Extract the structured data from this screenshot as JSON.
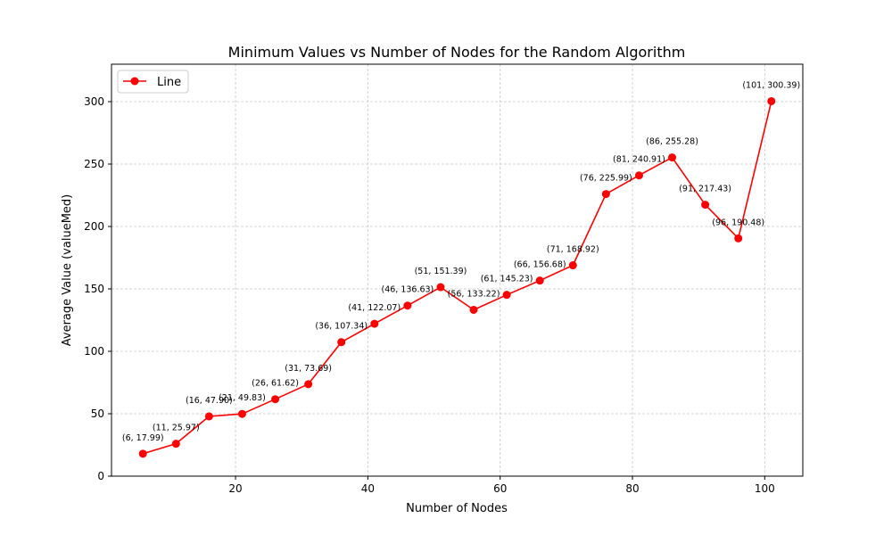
{
  "chart_data": {
    "type": "line",
    "title": "Minimum Values vs Number of Nodes for the Random Algorithm",
    "xlabel": "Number of Nodes",
    "ylabel": "Average Value (valueMed)",
    "xlim": [
      1.25,
      105.75
    ],
    "ylim": [
      0,
      330
    ],
    "xticks": [
      20,
      40,
      60,
      80,
      100
    ],
    "yticks": [
      0,
      50,
      100,
      150,
      200,
      250,
      300
    ],
    "grid": true,
    "legend_position": "top-left",
    "series": [
      {
        "name": "Line",
        "color": "#ff0000",
        "marker": "circle",
        "x": [
          6,
          11,
          16,
          21,
          26,
          31,
          36,
          41,
          46,
          51,
          56,
          61,
          66,
          71,
          76,
          81,
          86,
          91,
          96,
          101
        ],
        "y": [
          17.99,
          25.97,
          47.9,
          49.83,
          61.62,
          73.69,
          107.34,
          122.07,
          136.63,
          151.39,
          133.22,
          145.23,
          156.68,
          168.92,
          225.99,
          240.91,
          255.28,
          217.43,
          190.48,
          300.39
        ],
        "labels": [
          "(6, 17.99)",
          "(11, 25.97)",
          "(16, 47.90)",
          "(21, 49.83)",
          "(26, 61.62)",
          "(31, 73.69)",
          "(36, 107.34)",
          "(41, 122.07)",
          "(46, 136.63)",
          "(51, 151.39)",
          "(56, 133.22)",
          "(61, 145.23)",
          "(66, 156.68)",
          "(71, 168.92)",
          "(76, 225.99)",
          "(81, 240.91)",
          "(86, 255.28)",
          "(91, 217.43)",
          "(96, 190.48)",
          "(101, 300.39)"
        ]
      }
    ]
  }
}
